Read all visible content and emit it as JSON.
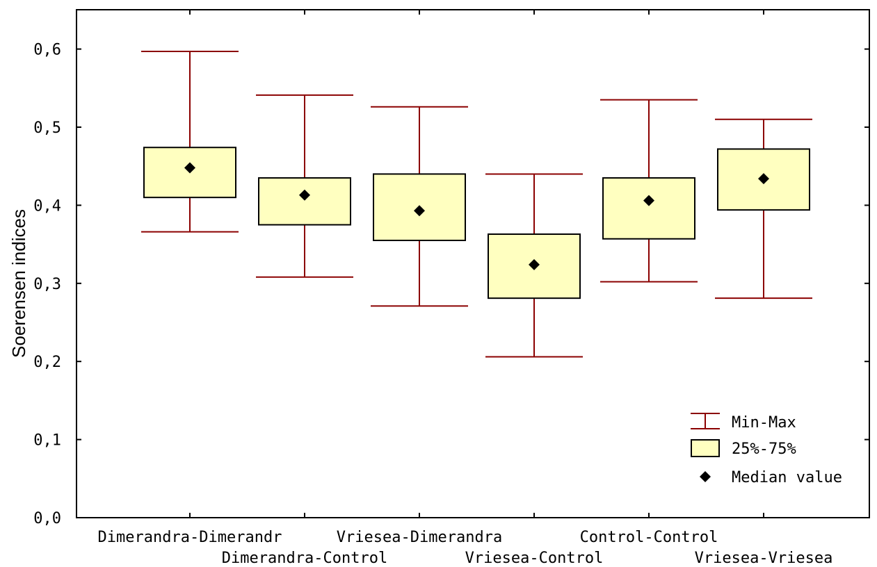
{
  "chart_data": {
    "type": "box",
    "title": "",
    "xlabel": "",
    "ylabel": "Soerensen indices",
    "ylim": [
      0,
      0.65
    ],
    "yticks": [
      "0,0",
      "0,1",
      "0,2",
      "0,3",
      "0,4",
      "0,5",
      "0,6"
    ],
    "ytick_values": [
      0,
      0.1,
      0.2,
      0.3,
      0.4,
      0.5,
      0.6
    ],
    "categories": [
      "Dimerandra-Dimerandr",
      "Dimerandra-Control",
      "Vriesea-Dimerandra",
      "Vriesea-Control",
      "Control-Control",
      "Vriesea-Vriesea"
    ],
    "series": [
      {
        "category": "Dimerandra-Dimerandr",
        "min": 0.366,
        "q1": 0.41,
        "median": 0.448,
        "q3": 0.474,
        "max": 0.597
      },
      {
        "category": "Dimerandra-Control",
        "min": 0.308,
        "q1": 0.375,
        "median": 0.413,
        "q3": 0.435,
        "max": 0.541
      },
      {
        "category": "Vriesea-Dimerandra",
        "min": 0.271,
        "q1": 0.355,
        "median": 0.393,
        "q3": 0.44,
        "max": 0.526
      },
      {
        "category": "Vriesea-Control",
        "min": 0.206,
        "q1": 0.281,
        "median": 0.324,
        "q3": 0.363,
        "max": 0.44
      },
      {
        "category": "Control-Control",
        "min": 0.302,
        "q1": 0.357,
        "median": 0.406,
        "q3": 0.435,
        "max": 0.535
      },
      {
        "category": "Vriesea-Vriesea",
        "min": 0.281,
        "q1": 0.394,
        "median": 0.434,
        "q3": 0.472,
        "max": 0.51
      }
    ],
    "legend": {
      "position": "bottom-right",
      "items": [
        {
          "label": "Min-Max",
          "symbol": "whisker"
        },
        {
          "label": "25%-75%",
          "symbol": "box"
        },
        {
          "label": "Median value",
          "symbol": "diamond"
        }
      ]
    },
    "colors": {
      "whisker": "#8b0000",
      "box_fill": "#ffffc0",
      "box_stroke": "#000000",
      "median": "#000000"
    },
    "grid": false
  }
}
